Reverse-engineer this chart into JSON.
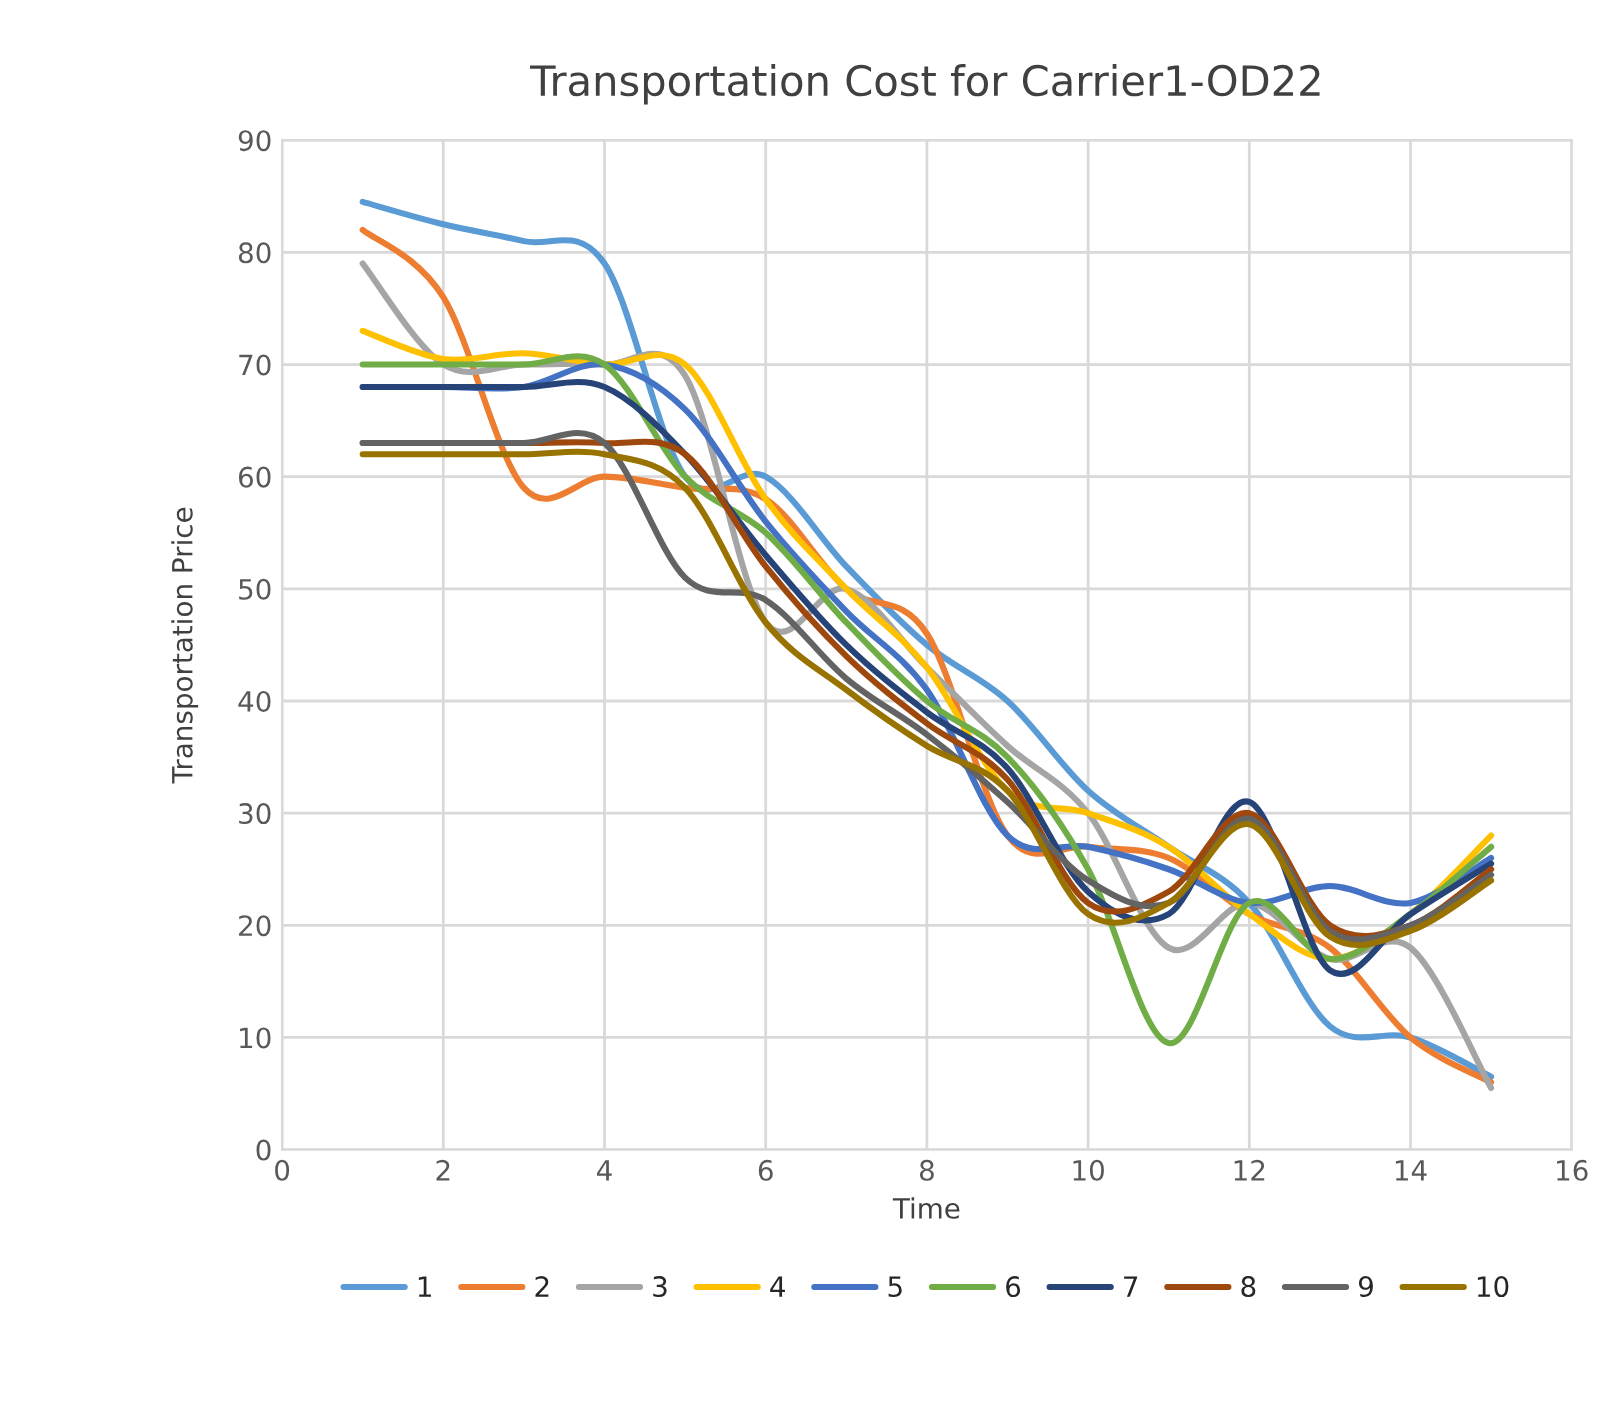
{
  "chart_data": {
    "type": "line",
    "title": "Transportation Cost for Carrier1-OD22",
    "xlabel": "Time",
    "ylabel": "Transportation Price",
    "x": [
      1,
      2,
      3,
      4,
      5,
      6,
      7,
      8,
      9,
      10,
      11,
      12,
      13,
      14,
      15
    ],
    "xlim": [
      0,
      16
    ],
    "xticks": [
      0,
      2,
      4,
      6,
      8,
      10,
      12,
      14,
      16
    ],
    "ylim": [
      0,
      90
    ],
    "yticks": [
      0,
      10,
      20,
      30,
      40,
      50,
      60,
      70,
      80,
      90
    ],
    "grid": true,
    "legend": "bottom",
    "marker": "none",
    "line_style": "solid",
    "series": [
      {
        "name": "1",
        "color": "#5b9bd5",
        "values": [
          84.5,
          82.5,
          81,
          79,
          60,
          60,
          52,
          45,
          40,
          32,
          27,
          22,
          11,
          10,
          6.5
        ]
      },
      {
        "name": "2",
        "color": "#ed7d31",
        "values": [
          82,
          76,
          59,
          60,
          59,
          58,
          50,
          46,
          28,
          27,
          26,
          21,
          18,
          10,
          6
        ]
      },
      {
        "name": "3",
        "color": "#a5a5a5",
        "values": [
          79,
          70,
          70,
          70,
          69,
          47,
          50,
          43,
          36,
          30,
          18,
          22,
          17,
          18,
          5.5
        ]
      },
      {
        "name": "4",
        "color": "#ffc000",
        "values": [
          73,
          70.5,
          71,
          70,
          70,
          58,
          50,
          43,
          32,
          30,
          27,
          21,
          17,
          21,
          28
        ]
      },
      {
        "name": "5",
        "color": "#4472c4",
        "values": [
          68,
          68,
          68,
          70,
          66,
          56,
          48,
          41,
          28,
          27,
          25,
          22,
          23.5,
          22,
          26
        ]
      },
      {
        "name": "6",
        "color": "#70ad47",
        "values": [
          70,
          70,
          70,
          70,
          60,
          55,
          47,
          40,
          35,
          25,
          9.5,
          22,
          17,
          21,
          27
        ]
      },
      {
        "name": "7",
        "color": "#264478",
        "values": [
          68,
          68,
          68,
          68,
          62,
          53,
          45,
          39,
          34,
          23,
          21,
          31,
          16,
          21,
          25.5
        ]
      },
      {
        "name": "8",
        "color": "#9e480e",
        "values": [
          63,
          63,
          63,
          63,
          62,
          52,
          44,
          38,
          33,
          22,
          23,
          30,
          20,
          20,
          25
        ]
      },
      {
        "name": "9",
        "color": "#636363",
        "values": [
          63,
          63,
          63,
          63,
          51,
          49,
          42,
          37,
          31,
          24,
          22,
          29.5,
          19.5,
          20,
          24.5
        ]
      },
      {
        "name": "10",
        "color": "#997300",
        "values": [
          62,
          62,
          62,
          62,
          59,
          47,
          41,
          36,
          32,
          21,
          22,
          29,
          19,
          19.5,
          24
        ]
      }
    ]
  }
}
